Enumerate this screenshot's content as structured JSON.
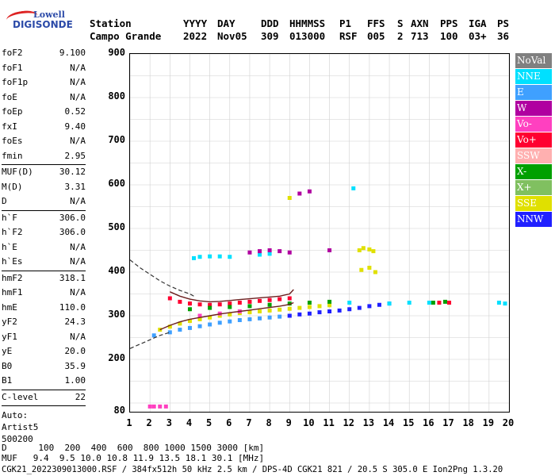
{
  "logo": {
    "line1": "Lowell",
    "line2": "DIGISONDE"
  },
  "header": {
    "row1": [
      "Station",
      "YYYY",
      "DAY",
      "DDD",
      "HHMMSS",
      "P1",
      "FFS",
      "S",
      "AXN",
      "PPS",
      "IGA",
      "PS"
    ],
    "row2": [
      "Campo Grande",
      "2022",
      "Nov05",
      "309",
      "013000",
      "RSF",
      "005",
      "2",
      "713",
      "100",
      "03+",
      "36"
    ]
  },
  "params_block1": [
    {
      "k": "foF2",
      "v": "9.100"
    },
    {
      "k": "foF1",
      "v": "N/A"
    },
    {
      "k": "foF1p",
      "v": "N/A"
    },
    {
      "k": "foE",
      "v": "N/A"
    },
    {
      "k": "foEp",
      "v": "0.52"
    },
    {
      "k": "fxI",
      "v": "9.40"
    },
    {
      "k": "foEs",
      "v": "N/A"
    },
    {
      "k": "fmin",
      "v": "2.95"
    }
  ],
  "params_block2": [
    {
      "k": "MUF(D)",
      "v": "30.12"
    },
    {
      "k": "M(D)",
      "v": "3.31"
    },
    {
      "k": "D",
      "v": "N/A"
    }
  ],
  "params_block3": [
    {
      "k": "h`F",
      "v": "306.0"
    },
    {
      "k": "h`F2",
      "v": "306.0"
    },
    {
      "k": "h`E",
      "v": "N/A"
    },
    {
      "k": "h`Es",
      "v": "N/A"
    }
  ],
  "params_block4": [
    {
      "k": "hmF2",
      "v": "318.1"
    },
    {
      "k": "hmF1",
      "v": "N/A"
    },
    {
      "k": "hmE",
      "v": "110.0"
    },
    {
      "k": "yF2",
      "v": "24.3"
    },
    {
      "k": "yF1",
      "v": "N/A"
    },
    {
      "k": "yE",
      "v": "20.0"
    },
    {
      "k": "B0",
      "v": "35.9"
    },
    {
      "k": "B1",
      "v": "1.00"
    }
  ],
  "clevel": {
    "k": "C-level",
    "v": "22"
  },
  "auto": [
    "Auto:",
    "Artist5",
    "500200"
  ],
  "legend": [
    {
      "label": "NoVal",
      "color": "#808080"
    },
    {
      "label": "NNE",
      "color": "#00e0ff"
    },
    {
      "label": "E",
      "color": "#3fa0ff"
    },
    {
      "label": "W",
      "color": "#b000a0"
    },
    {
      "label": "Vo-",
      "color": "#ff40c0"
    },
    {
      "label": "Vo+",
      "color": "#ff0030"
    },
    {
      "label": "SSW",
      "color": "#ffb0b0"
    },
    {
      "label": "X-",
      "color": "#00a000"
    },
    {
      "label": "X+",
      "color": "#80c060"
    },
    {
      "label": "SSE",
      "color": "#e0e000"
    },
    {
      "label": "NNW",
      "color": "#2020ff"
    }
  ],
  "muf_table": {
    "row1": "D      100  200  400  600  800 1000 1500 3000 [km]",
    "row2": "MUF   9.4  9.5 10.0 10.8 11.9 13.5 18.1 30.1 [MHz]"
  },
  "footer": "CGK21_2022309013000.RSF / 384fx512h 50 kHz 2.5 km / DPS-4D CGK21 821 / 20.5 S 305.0 E Ion2Png 1.3.20",
  "chart_data": {
    "type": "scatter",
    "xlim": [
      1,
      20
    ],
    "ylim": [
      80,
      900
    ],
    "xticks": [
      1,
      2,
      3,
      4,
      5,
      6,
      7,
      8,
      9,
      10,
      11,
      12,
      13,
      14,
      15,
      16,
      17,
      18,
      19,
      20
    ],
    "yticks": [
      80,
      200,
      300,
      400,
      500,
      600,
      700,
      800,
      900
    ],
    "grid": true,
    "series": [
      {
        "color": "#3fa0ff",
        "x": [
          2.2,
          3,
          3.5,
          4,
          4.5,
          5,
          5.5,
          6,
          6.5,
          7,
          7.5,
          8,
          8.5,
          9
        ],
        "y": [
          255,
          262,
          268,
          272,
          276,
          280,
          284,
          287,
          290,
          292,
          294,
          296,
          298,
          300
        ]
      },
      {
        "color": "#e0e000",
        "x": [
          2.5,
          3,
          3.5,
          4,
          4.5,
          5,
          5.5,
          6,
          6.5,
          7,
          7.5,
          8,
          8.5,
          9,
          9.5,
          10,
          10.5,
          11
        ],
        "y": [
          268,
          275,
          282,
          288,
          292,
          296,
          300,
          303,
          306,
          308,
          310,
          312,
          314,
          316,
          318,
          320,
          322,
          324
        ]
      },
      {
        "color": "#2020ff",
        "x": [
          9,
          9.5,
          10,
          10.5,
          11,
          11.5,
          12,
          12.5,
          13,
          13.5,
          14
        ],
        "y": [
          300,
          303,
          305,
          308,
          310,
          312,
          315,
          318,
          322,
          325,
          328
        ]
      },
      {
        "color": "#00e0ff",
        "x": [
          4.2,
          4.5,
          5,
          5.5,
          6,
          7.5,
          8,
          12,
          14,
          15,
          16
        ],
        "y": [
          432,
          435,
          436,
          436,
          435,
          440,
          442,
          330,
          328,
          330,
          330
        ]
      },
      {
        "color": "#b000a0",
        "x": [
          7,
          7.5,
          8,
          8.5,
          9,
          9.5,
          10,
          11
        ],
        "y": [
          445,
          448,
          450,
          448,
          445,
          580,
          585,
          450
        ]
      },
      {
        "color": "#e0e000",
        "x": [
          12.5,
          12.7,
          13,
          13.2,
          12.6,
          13,
          13.3,
          9
        ],
        "y": [
          450,
          455,
          452,
          448,
          405,
          410,
          400,
          570
        ]
      },
      {
        "color": "#ff0030",
        "x": [
          3,
          3.5,
          4,
          4.5,
          5,
          5.5,
          6,
          6.5,
          7,
          7.5,
          8,
          8.5,
          9,
          16.5,
          17
        ],
        "y": [
          340,
          332,
          328,
          326,
          325,
          326,
          328,
          330,
          332,
          334,
          336,
          338,
          340,
          330,
          330
        ]
      },
      {
        "color": "#00a000",
        "x": [
          4,
          5,
          6,
          7,
          8,
          9,
          10,
          11,
          16.2,
          16.8
        ],
        "y": [
          315,
          318,
          320,
          322,
          325,
          328,
          330,
          332,
          330,
          332
        ]
      },
      {
        "color": "#ff40c0",
        "x": [
          2,
          2.2,
          2.5,
          2.8,
          4.5,
          5.5,
          6.5
        ],
        "y": [
          92,
          92,
          92,
          92,
          300,
          305,
          310
        ]
      },
      {
        "color": "#00e0ff",
        "x": [
          19.5,
          19.8,
          12.2
        ],
        "y": [
          330,
          328,
          592
        ]
      }
    ],
    "profile_curve": {
      "x": [
        2.5,
        3,
        3.5,
        4,
        4.5,
        5,
        5.5,
        6,
        6.5,
        7,
        7.5,
        8,
        8.5,
        9,
        9.2
      ],
      "y": [
        268,
        278,
        286,
        292,
        296,
        300,
        304,
        307,
        310,
        313,
        316,
        319,
        322,
        326,
        330
      ]
    },
    "profile_curve2": {
      "x": [
        3,
        3.5,
        4,
        4.5,
        5,
        5.5,
        6,
        6.5,
        7,
        7.5,
        8,
        8.5,
        9,
        9.2
      ],
      "y": [
        355,
        345,
        338,
        334,
        332,
        333,
        335,
        337,
        339,
        341,
        343,
        345,
        350,
        360
      ]
    },
    "dashed_upper": {
      "x": [
        1,
        1.5,
        2,
        2.5,
        3,
        3.5,
        4,
        4.2
      ],
      "y": [
        428,
        410,
        395,
        380,
        368,
        358,
        350,
        345
      ]
    },
    "dashed_lower": {
      "x": [
        1,
        1.5,
        2,
        2.5,
        3
      ],
      "y": [
        225,
        235,
        245,
        255,
        262
      ]
    }
  }
}
